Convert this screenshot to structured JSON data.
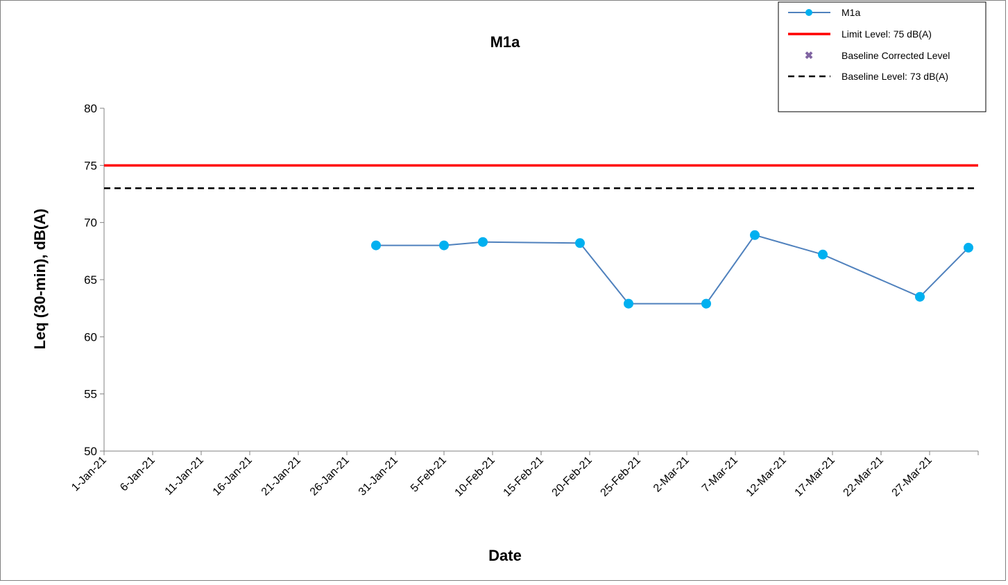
{
  "chart_data": {
    "type": "line",
    "title": "M1a",
    "xlabel": "Date",
    "ylabel": "Leq (30-min), dB(A)",
    "ylim": [
      50,
      80
    ],
    "yticks": [
      "50",
      "55",
      "60",
      "65",
      "70",
      "75",
      "80"
    ],
    "xlim": [
      "2021-01-01",
      "2021-04-01"
    ],
    "xticks": [
      "1-Jan-21",
      "6-Jan-21",
      "11-Jan-21",
      "16-Jan-21",
      "21-Jan-21",
      "26-Jan-21",
      "31-Jan-21",
      "5-Feb-21",
      "10-Feb-21",
      "15-Feb-21",
      "20-Feb-21",
      "25-Feb-21",
      "2-Mar-21",
      "7-Mar-21",
      "12-Mar-21",
      "17-Mar-21",
      "22-Mar-21",
      "27-Mar-21"
    ],
    "grid": false,
    "legend_position": "top-right",
    "series": [
      {
        "name": "M1a",
        "color": "#00b0f0",
        "line_color": "#4f81bd",
        "x": [
          "2021-01-29",
          "2021-02-05",
          "2021-02-09",
          "2021-02-19",
          "2021-02-24",
          "2021-03-04",
          "2021-03-09",
          "2021-03-16",
          "2021-03-26",
          "2021-03-31"
        ],
        "y": [
          68.0,
          68.0,
          68.3,
          68.2,
          62.9,
          62.9,
          68.9,
          67.2,
          63.5,
          67.8
        ]
      },
      {
        "name": "Limit Level: 75 dB(A)",
        "color": "#ff0000",
        "constant": 75
      },
      {
        "name": "Baseline Corrected Level",
        "color": "#8064a2",
        "x": [],
        "y": []
      },
      {
        "name": "Baseline Level: 73 dB(A)",
        "color": "#000000",
        "constant": 73
      }
    ]
  }
}
